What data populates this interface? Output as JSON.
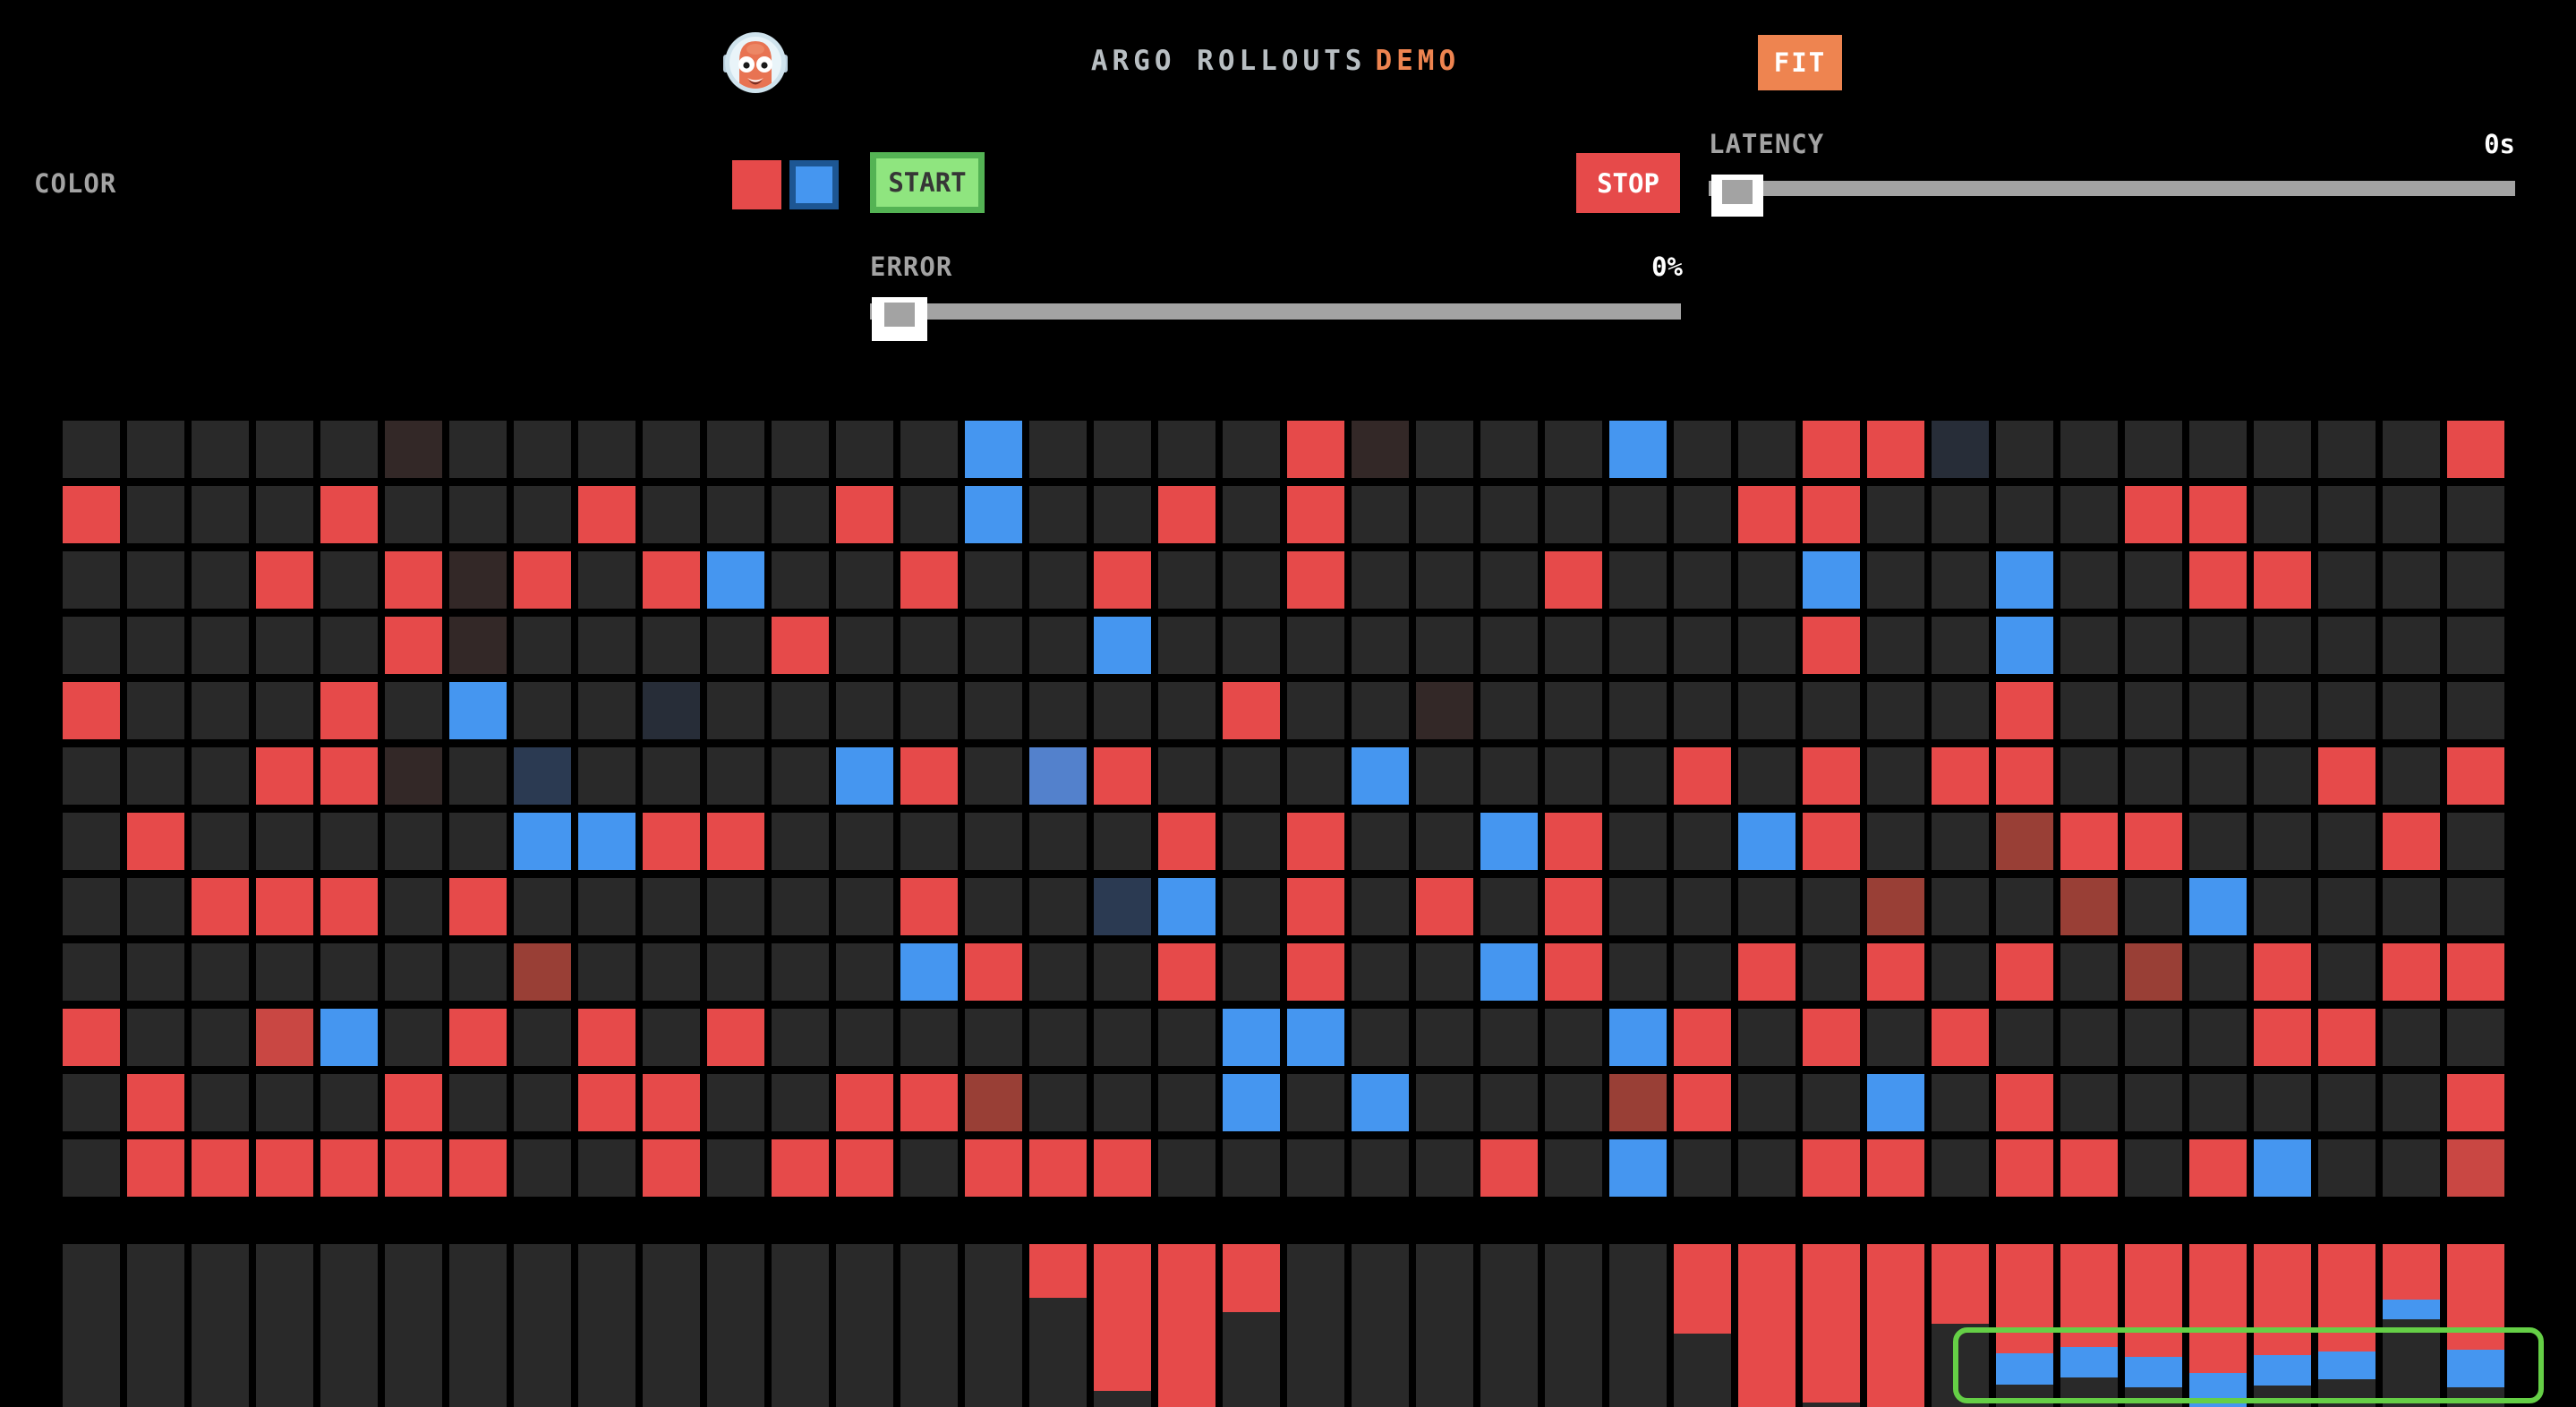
{
  "header": {
    "title_main": "ARGO ROLLOUTS",
    "title_accent": "DEMO",
    "fit_button": "FIT"
  },
  "controls": {
    "color_label": "COLOR",
    "start_button": "START",
    "stop_button": "STOP",
    "error": {
      "label": "ERROR",
      "value": "0%"
    },
    "latency": {
      "label": "LATENCY",
      "value": "0s"
    }
  },
  "colors": {
    "background": "#000000",
    "red": "#e64a4a",
    "blue": "#4596f0",
    "tile-dark": "#292929",
    "faint-red": "#332827",
    "brick-red": "#993f36",
    "faint-navy": "#272d38",
    "navy": "#2b3a52",
    "steel-blue": "#5381cc",
    "dark-red": "#c94743",
    "orange": "#ee8450",
    "title-gray": "#b8bec2",
    "label-gray": "#a3a3a3",
    "track-gray": "#a3a3a3",
    "start-fill": "#8fe57f",
    "start-border": "#54b354",
    "start-text": "#363636",
    "highlight-green": "#65cf46",
    "swatch-blue-border": "#1d5693"
  },
  "grid": {
    "columns": 38,
    "rows_count": 12,
    "color_map": {
      ".": "tile-dark",
      "R": "red",
      "B": "blue",
      "r": "faint-red",
      "p": "brick-red",
      "n": "faint-navy",
      "N": "navy",
      "s": "steel-blue",
      "d": "dark-red"
    },
    "rows": [
      ".....r........B....Rr...B..RRn.......R",
      "R...R...R...R.B..R.R......RR....RR....",
      "...R.RrR.RB..R..R..R...R...B..B..RR...",
      ".....Rr....R....B..........R..B.......",
      "R...R.B..n........R..r........R.......",
      "...RRr.N....BR.sR...B....R.R.RR....R.R",
      ".R.....BBRR......R.R..BR..BR..pRR...R.",
      "..RRR.R......R..NB.R.R.R....p..p.B....",
      ".......p.....BR..R.R..BR..R.R.R.p.R.RR",
      "R..dB.R.R.R.......BB....BR.R.R....RR..",
      ".R...R..RR..RRp...B.B...pR..B.R......R",
      ".RRRRRR..R.RR.RRR.....R.B..RR.RR.RB..d"
    ]
  },
  "bottom_bars": {
    "segment_color_map": {
      "R": "red",
      "B": "blue",
      "D": "tile-dark"
    },
    "columns": [
      [
        [
          "D",
          100
        ]
      ],
      [
        [
          "D",
          100
        ]
      ],
      [
        [
          "D",
          100
        ]
      ],
      [
        [
          "D",
          100
        ]
      ],
      [
        [
          "D",
          100
        ]
      ],
      [
        [
          "D",
          100
        ]
      ],
      [
        [
          "D",
          100
        ]
      ],
      [
        [
          "D",
          100
        ]
      ],
      [
        [
          "D",
          100
        ]
      ],
      [
        [
          "D",
          100
        ]
      ],
      [
        [
          "D",
          100
        ]
      ],
      [
        [
          "D",
          100
        ]
      ],
      [
        [
          "D",
          100
        ]
      ],
      [
        [
          "D",
          100
        ]
      ],
      [
        [
          "D",
          100
        ]
      ],
      [
        [
          "R",
          33
        ],
        [
          "D",
          67
        ]
      ],
      [
        [
          "R",
          90
        ],
        [
          "D",
          10
        ]
      ],
      [
        [
          "R",
          100
        ]
      ],
      [
        [
          "R",
          42
        ],
        [
          "D",
          58
        ]
      ],
      [
        [
          "D",
          100
        ]
      ],
      [
        [
          "D",
          100
        ]
      ],
      [
        [
          "D",
          100
        ]
      ],
      [
        [
          "D",
          100
        ]
      ],
      [
        [
          "D",
          100
        ]
      ],
      [
        [
          "D",
          100
        ]
      ],
      [
        [
          "R",
          55
        ],
        [
          "D",
          45
        ]
      ],
      [
        [
          "R",
          100
        ]
      ],
      [
        [
          "R",
          97
        ],
        [
          "D",
          3
        ]
      ],
      [
        [
          "R",
          100
        ]
      ],
      [
        [
          "R",
          49
        ],
        [
          "D",
          51
        ]
      ],
      [
        [
          "R",
          67
        ],
        [
          "B",
          19
        ],
        [
          "D",
          14
        ]
      ],
      [
        [
          "R",
          63
        ],
        [
          "B",
          19
        ],
        [
          "D",
          18
        ]
      ],
      [
        [
          "R",
          69
        ],
        [
          "B",
          19
        ],
        [
          "D",
          12
        ]
      ],
      [
        [
          "R",
          79
        ],
        [
          "B",
          21
        ]
      ],
      [
        [
          "R",
          68
        ],
        [
          "B",
          19
        ],
        [
          "D",
          13
        ]
      ],
      [
        [
          "R",
          66
        ],
        [
          "B",
          17
        ],
        [
          "D",
          17
        ]
      ],
      [
        [
          "R",
          34
        ],
        [
          "B",
          12
        ],
        [
          "D",
          54
        ]
      ],
      [
        [
          "R",
          65
        ],
        [
          "B",
          23
        ],
        [
          "D",
          12
        ]
      ]
    ]
  }
}
